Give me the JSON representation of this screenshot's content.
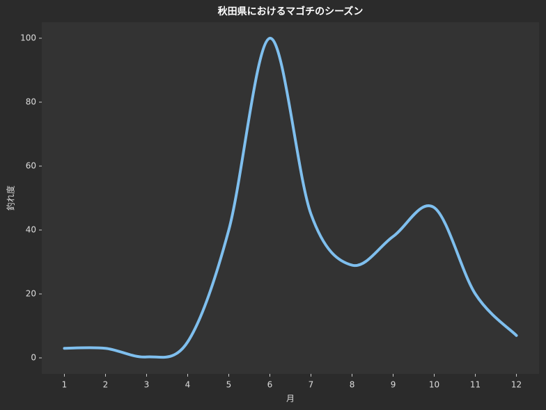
{
  "chart_data": {
    "type": "line",
    "title": "秋田県におけるマゴチのシーズン",
    "x_label": "月",
    "y_label": "釣れ度",
    "x": [
      1,
      2,
      3,
      4,
      5,
      6,
      7,
      8,
      9,
      10,
      11,
      12
    ],
    "series": [
      {
        "name": "釣れ度",
        "color": "#7fbfee",
        "values": [
          3,
          3,
          0.3,
          5,
          40,
          100,
          45,
          29,
          38,
          47,
          20,
          7
        ]
      }
    ],
    "xlim": [
      0.45,
      12.55
    ],
    "xticks": [
      1,
      2,
      3,
      4,
      5,
      6,
      7,
      8,
      9,
      10,
      11,
      12
    ],
    "ylim": [
      -5,
      105
    ],
    "yticks": [
      0,
      20,
      40,
      60,
      80,
      100
    ],
    "grid": false,
    "smooth": true
  }
}
